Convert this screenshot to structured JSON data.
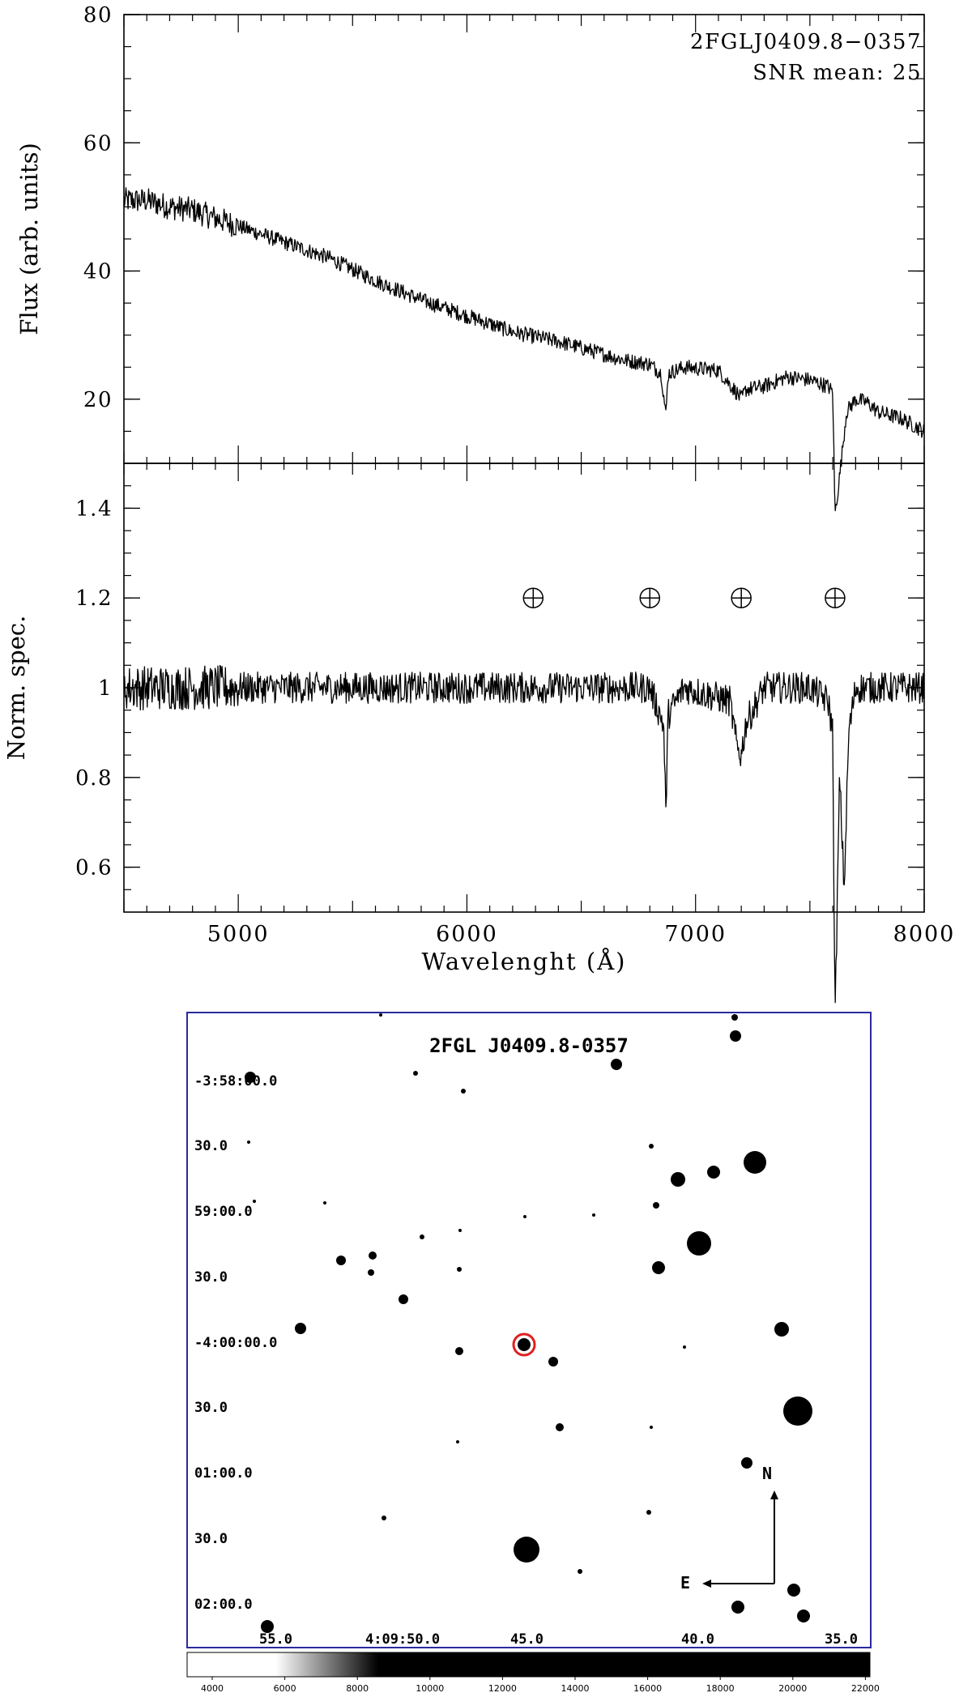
{
  "chart_data": [
    {
      "type": "line",
      "panel": "top",
      "annotations": [
        "2FGLJ0409.8−0357",
        "SNR mean: 25"
      ],
      "ylabel": "Flux (arb. units)",
      "xlim": [
        4500,
        8000
      ],
      "ylim": [
        10,
        80
      ],
      "yticks": [
        20,
        40,
        60,
        80
      ],
      "ytick_labels": [
        "20",
        "40",
        "60",
        "80"
      ],
      "grid": false,
      "series": [
        {
          "x": [
            4500,
            4600,
            4700,
            4800,
            5000,
            5200,
            5400,
            5600,
            5800,
            6000,
            6200,
            6400,
            6600,
            6700,
            6800,
            6850,
            6870,
            6880,
            6950,
            7100,
            7180,
            7200,
            7220,
            7300,
            7400,
            7500,
            7580,
            7600,
            7610,
            7630,
            7660,
            7700,
            7750,
            7800,
            7900,
            8000
          ],
          "y": [
            51,
            51,
            50,
            49.5,
            47,
            44.5,
            42,
            38.5,
            35.5,
            33,
            30.5,
            29,
            27,
            26,
            25.5,
            24,
            17.5,
            24,
            25,
            24.5,
            21,
            20,
            21.5,
            22,
            23.5,
            23,
            22,
            21,
            2,
            8,
            18,
            20,
            19.5,
            18,
            17,
            15
          ]
        }
      ]
    },
    {
      "type": "line",
      "panel": "bottom",
      "xlabel": "Wavelenght (Å)",
      "ylabel": "Norm. spec.",
      "xlim": [
        4500,
        8000
      ],
      "ylim": [
        0.5,
        1.5
      ],
      "xticks": [
        5000,
        6000,
        7000,
        8000
      ],
      "xtick_labels": [
        "5000",
        "6000",
        "7000",
        "8000"
      ],
      "yticks": [
        0.6,
        0.8,
        1,
        1.2,
        1.4
      ],
      "ytick_labels": [
        "0.6",
        "0.8",
        "1",
        "1.2",
        "1.4"
      ],
      "grid": false,
      "telluric_markers_x": [
        6290,
        6800,
        7200,
        7610
      ],
      "series": [
        {
          "x": [
            4500,
            4800,
            5200,
            5600,
            6000,
            6300,
            6800,
            6860,
            6870,
            6880,
            6950,
            7150,
            7180,
            7200,
            7220,
            7300,
            7500,
            7580,
            7600,
            7610,
            7630,
            7650,
            7670,
            7700,
            7800,
            8000
          ],
          "y": [
            1,
            1,
            1,
            1,
            1,
            1,
            1,
            0.92,
            0.72,
            0.94,
            1,
            0.97,
            0.87,
            0.85,
            0.92,
            1,
            1,
            0.97,
            0.9,
            0.25,
            0.8,
            0.55,
            0.9,
            1,
            1,
            1
          ]
        }
      ]
    },
    {
      "type": "other",
      "description_kind": "finding-chart",
      "title": "2FGL J0409.8-0357",
      "dec_labels": [
        "-3:58:00.0",
        "30.0",
        "59:00.0",
        "30.0",
        "-4:00:00.0",
        "30.0",
        "01:00.0",
        "30.0",
        "02:00.0"
      ],
      "ra_labels": [
        "55.0",
        "4:09:50.0",
        "45.0",
        "40.0",
        "35.0"
      ],
      "compass": {
        "north": "N",
        "east": "E"
      },
      "colorbar_ticks": [
        "4000",
        "6000",
        "8000",
        "10000",
        "12000",
        "14000",
        "16000",
        "18000",
        "20000",
        "22000"
      ],
      "target_ring_color": "#e02020",
      "frame_color": "#2a2aa0"
    }
  ]
}
